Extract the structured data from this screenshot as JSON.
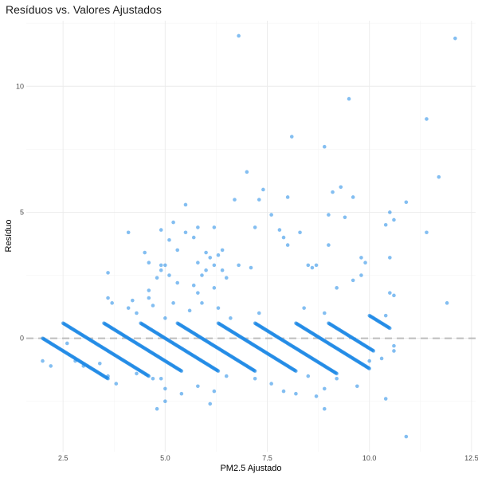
{
  "chart_data": {
    "type": "scatter",
    "title": "Resíduos vs. Valores Ajustados",
    "xlabel": "PM2.5 Ajustado",
    "ylabel": "Resíduo",
    "xlim": [
      1.6,
      12.6
    ],
    "ylim": [
      -4.5,
      12.6
    ],
    "xticks": [
      2.5,
      5.0,
      7.5,
      10.0,
      12.5
    ],
    "xtick_labels": [
      "2.5",
      "5.0",
      "7.5",
      "10.0",
      "12.5"
    ],
    "yticks": [
      0,
      5,
      10
    ],
    "ytick_labels": [
      "0",
      "5",
      "10"
    ],
    "reference_line": {
      "y": 0,
      "style": "dashed",
      "color": "#bdbdbd"
    },
    "grid": true,
    "legend": "none",
    "point_color": "#1e88e5",
    "point_alpha": 0.55,
    "bands": [
      {
        "x_start": 2.0,
        "x_end": 3.6
      },
      {
        "x_start": 2.5,
        "x_end": 4.6
      },
      {
        "x_start": 3.5,
        "x_end": 5.4
      },
      {
        "x_start": 4.4,
        "x_end": 6.3
      },
      {
        "x_start": 5.3,
        "x_end": 7.2
      },
      {
        "x_start": 6.3,
        "x_end": 8.2
      },
      {
        "x_start": 7.2,
        "x_end": 9.2
      },
      {
        "x_start": 8.2,
        "x_end": 10.0
      },
      {
        "x_start": 9.0,
        "x_end": 10.1
      },
      {
        "x_start": 10.0,
        "x_end": 10.5
      }
    ],
    "band_slope": -1,
    "points": [
      [
        6.8,
        12.0
      ],
      [
        12.1,
        11.9
      ],
      [
        9.5,
        9.5
      ],
      [
        11.4,
        8.7
      ],
      [
        8.1,
        8.0
      ],
      [
        8.9,
        7.6
      ],
      [
        7.0,
        6.6
      ],
      [
        11.7,
        6.4
      ],
      [
        7.4,
        5.9
      ],
      [
        9.3,
        6.0
      ],
      [
        9.1,
        5.8
      ],
      [
        8.0,
        5.6
      ],
      [
        6.7,
        5.5
      ],
      [
        7.3,
        5.5
      ],
      [
        9.6,
        5.6
      ],
      [
        10.5,
        5.0
      ],
      [
        10.9,
        5.4
      ],
      [
        5.5,
        5.3
      ],
      [
        7.6,
        4.9
      ],
      [
        9.0,
        4.9
      ],
      [
        9.4,
        4.8
      ],
      [
        10.4,
        4.5
      ],
      [
        10.6,
        4.7
      ],
      [
        7.2,
        4.4
      ],
      [
        11.4,
        4.2
      ],
      [
        4.1,
        4.2
      ],
      [
        4.9,
        4.3
      ],
      [
        5.2,
        4.6
      ],
      [
        5.8,
        4.4
      ],
      [
        6.2,
        4.4
      ],
      [
        7.8,
        4.3
      ],
      [
        8.3,
        4.2
      ],
      [
        5.5,
        4.2
      ],
      [
        5.7,
        4.0
      ],
      [
        7.9,
        4.0
      ],
      [
        5.1,
        3.9
      ],
      [
        4.5,
        3.4
      ],
      [
        5.3,
        3.5
      ],
      [
        6.0,
        3.4
      ],
      [
        6.4,
        3.5
      ],
      [
        8.0,
        3.7
      ],
      [
        9.0,
        3.7
      ],
      [
        9.8,
        3.2
      ],
      [
        10.5,
        3.2
      ],
      [
        6.1,
        3.2
      ],
      [
        6.3,
        3.3
      ],
      [
        5.8,
        3.0
      ],
      [
        4.6,
        3.0
      ],
      [
        4.9,
        2.9
      ],
      [
        5.0,
        2.9
      ],
      [
        6.2,
        2.9
      ],
      [
        6.8,
        2.9
      ],
      [
        7.1,
        2.8
      ],
      [
        8.5,
        2.9
      ],
      [
        8.7,
        2.9
      ],
      [
        9.9,
        3.0
      ],
      [
        3.6,
        2.6
      ],
      [
        4.9,
        2.7
      ],
      [
        6.0,
        2.7
      ],
      [
        6.4,
        2.7
      ],
      [
        8.6,
        2.8
      ],
      [
        4.8,
        2.4
      ],
      [
        5.1,
        2.5
      ],
      [
        5.9,
        2.5
      ],
      [
        5.3,
        2.2
      ],
      [
        6.5,
        2.4
      ],
      [
        5.7,
        2.1
      ],
      [
        6.2,
        2.0
      ],
      [
        4.6,
        1.9
      ],
      [
        5.8,
        1.8
      ],
      [
        9.8,
        2.5
      ],
      [
        9.6,
        2.3
      ],
      [
        9.2,
        2.0
      ],
      [
        10.5,
        1.8
      ],
      [
        10.6,
        1.7
      ],
      [
        11.9,
        1.4
      ],
      [
        3.6,
        1.6
      ],
      [
        3.7,
        1.4
      ],
      [
        4.2,
        1.5
      ],
      [
        4.6,
        1.6
      ],
      [
        4.1,
        1.2
      ],
      [
        4.7,
        1.3
      ],
      [
        5.2,
        1.4
      ],
      [
        5.6,
        1.1
      ],
      [
        5.9,
        1.4
      ],
      [
        6.3,
        1.2
      ],
      [
        6.6,
        0.8
      ],
      [
        7.3,
        1.0
      ],
      [
        8.4,
        1.2
      ],
      [
        8.9,
        1.0
      ],
      [
        10.4,
        0.9
      ],
      [
        10.6,
        -0.3
      ],
      [
        10.6,
        -0.5
      ],
      [
        4.3,
        1.0
      ],
      [
        5.0,
        0.8
      ],
      [
        2.0,
        -0.9
      ],
      [
        2.2,
        -1.1
      ],
      [
        2.8,
        -0.9
      ],
      [
        3.0,
        -1.1
      ],
      [
        3.6,
        -1.5
      ],
      [
        3.8,
        -1.8
      ],
      [
        4.3,
        -1.4
      ],
      [
        4.7,
        -1.6
      ],
      [
        4.9,
        -1.6
      ],
      [
        5.0,
        -2.0
      ],
      [
        5.8,
        -1.9
      ],
      [
        6.2,
        -2.1
      ],
      [
        6.5,
        -1.5
      ],
      [
        7.2,
        -1.6
      ],
      [
        7.6,
        -1.8
      ],
      [
        8.2,
        -2.2
      ],
      [
        8.5,
        -1.5
      ],
      [
        8.9,
        -2.0
      ],
      [
        9.2,
        -1.6
      ],
      [
        9.7,
        -1.9
      ],
      [
        10.0,
        -0.9
      ],
      [
        10.3,
        -0.8
      ],
      [
        10.4,
        -2.4
      ],
      [
        4.8,
        -2.8
      ],
      [
        5.4,
        -2.2
      ],
      [
        6.1,
        -2.6
      ],
      [
        7.9,
        -2.1
      ],
      [
        8.7,
        -2.3
      ],
      [
        8.9,
        -2.8
      ],
      [
        10.9,
        -3.9
      ],
      [
        5.0,
        -2.5
      ],
      [
        3.4,
        -1.0
      ],
      [
        2.6,
        -0.2
      ]
    ]
  }
}
